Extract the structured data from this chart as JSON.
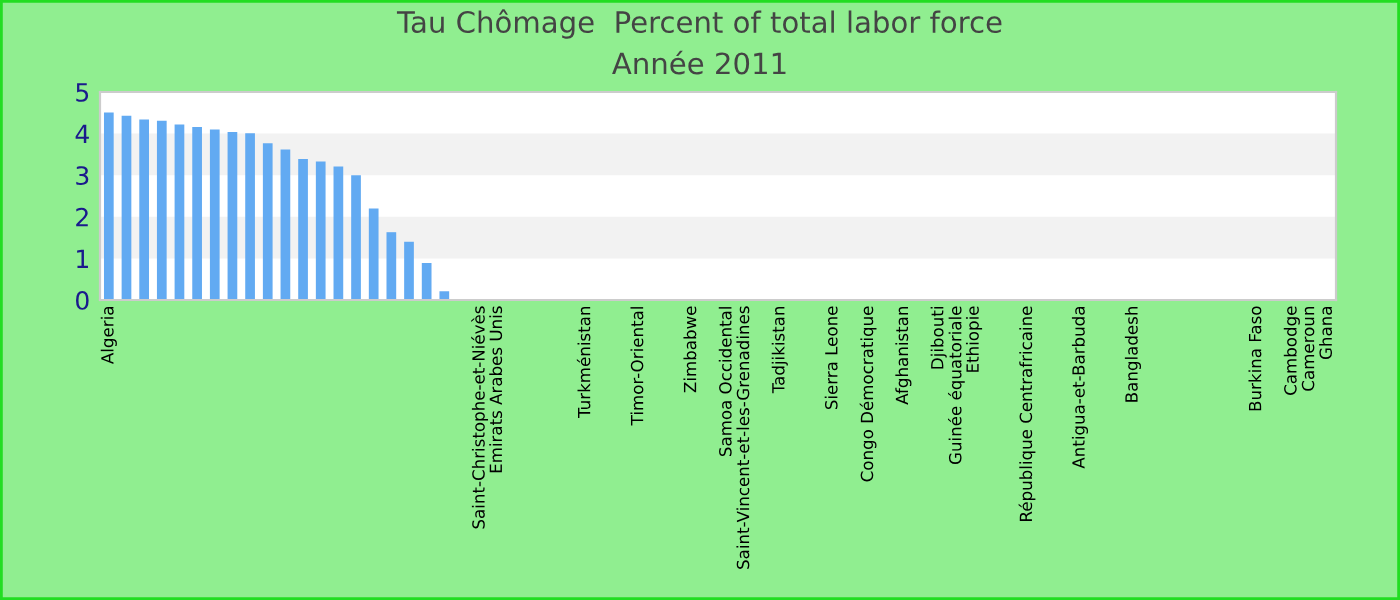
{
  "chart_data": {
    "type": "bar",
    "title": "Tau Chômage  Percent of total labor force",
    "subtitle": "Année 2011",
    "categories": [
      "Algeria",
      null,
      null,
      null,
      null,
      null,
      null,
      null,
      null,
      null,
      null,
      null,
      null,
      null,
      null,
      null,
      null,
      null,
      null,
      null,
      null,
      "Saint-Christophe-et-Niévès",
      "Emirats Arabes Unis",
      null,
      null,
      null,
      null,
      "Turkménistan",
      null,
      null,
      "Timor-Oriental",
      null,
      null,
      "Zimbabwe",
      null,
      "Samoa Occidental",
      "Saint-Vincent-et-les-Grenadines",
      null,
      "Tadjikistan",
      null,
      null,
      "Sierra Leone",
      null,
      "Congo Démocratique",
      null,
      "Afghanistan",
      null,
      "Djibouti",
      "Guinée équatoriale",
      "Ethiopie",
      null,
      null,
      "République Centrafricaine",
      null,
      null,
      "Antigua-et-Barbuda",
      null,
      null,
      "Bangladesh",
      null,
      null,
      null,
      null,
      null,
      null,
      "Burkina Faso",
      null,
      "Cambodge",
      "Cameroun",
      "Ghana"
    ],
    "values": [
      4.51,
      4.43,
      4.34,
      4.31,
      4.22,
      4.16,
      4.1,
      4.04,
      4.01,
      3.77,
      3.62,
      3.39,
      3.33,
      3.21,
      3.0,
      2.2,
      1.63,
      1.4,
      0.89,
      0.21,
      null,
      null,
      null,
      null,
      null,
      null,
      null,
      null,
      null,
      null,
      null,
      null,
      null,
      null,
      null,
      null,
      null,
      null,
      null,
      null,
      null,
      null,
      null,
      null,
      null,
      null,
      null,
      null,
      null,
      null,
      null,
      null,
      null,
      null,
      null,
      null,
      null,
      null,
      null,
      null,
      null,
      null,
      null,
      null,
      null,
      null,
      null,
      null,
      null,
      null
    ],
    "color": "#62aaf2",
    "ylim": [
      0,
      5
    ],
    "yticks": [
      0,
      1,
      2,
      3,
      4,
      5
    ],
    "bands": [
      {
        "axis": "y",
        "from": 1,
        "to": 2,
        "color": "#f2f2f2"
      },
      {
        "axis": "y",
        "from": 3,
        "to": 4,
        "color": "#f2f2f2"
      }
    ],
    "grid": false,
    "legend": false
  }
}
